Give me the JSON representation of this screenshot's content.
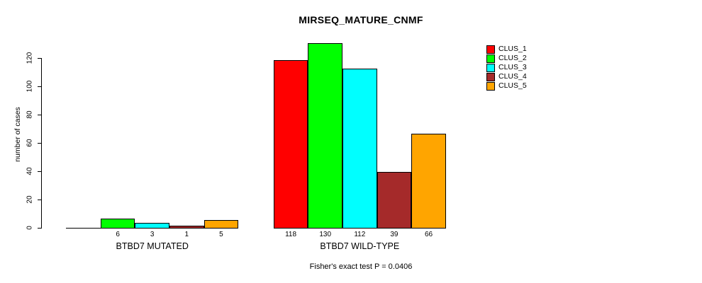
{
  "chart_data": {
    "type": "bar",
    "title": "MIRSEQ_MATURE_CNMF",
    "ylabel": "number of cases",
    "xlabel": "",
    "annotation": "Fisher's exact test P = 0.0406",
    "yticks": [
      0,
      20,
      40,
      60,
      80,
      100,
      120
    ],
    "ylim": [
      0,
      130
    ],
    "grid": false,
    "legend_position": "right",
    "legend": [
      "CLUS_1",
      "CLUS_2",
      "CLUS_3",
      "CLUS_4",
      "CLUS_5"
    ],
    "series_colors": [
      "#FF0000",
      "#00FF00",
      "#00FFFF",
      "#A52A2A",
      "#FFA500"
    ],
    "groups": [
      {
        "label": "BTBD7 MUTATED",
        "values": [
          0,
          6,
          3,
          1,
          5
        ],
        "bar_labels": [
          "",
          "6",
          "3",
          "1",
          "5"
        ]
      },
      {
        "label": "BTBD7 WILD-TYPE",
        "values": [
          118,
          130,
          112,
          39,
          66
        ],
        "bar_labels": [
          "118",
          "130",
          "112",
          "39",
          "66"
        ]
      }
    ]
  }
}
